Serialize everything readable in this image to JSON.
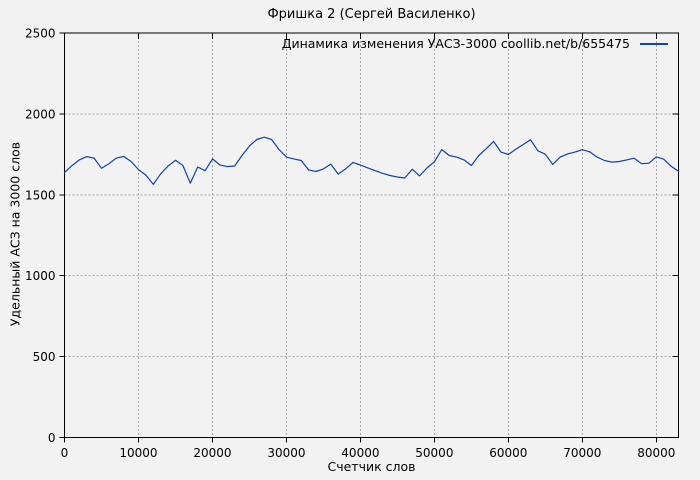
{
  "colors": {
    "background": "#f2f2f2",
    "grid": "#a6a6a6",
    "axis": "#000000",
    "series_line": "#1243a5"
  },
  "chart_data": {
    "type": "line",
    "title": "Фришка 2 (Сергей Василенко)",
    "xlabel": "Счетчик слов",
    "ylabel": "Удельный АСЗ на 3000 слов",
    "xlim": [
      0,
      83000
    ],
    "ylim": [
      0,
      2500
    ],
    "xticks": [
      0,
      10000,
      20000,
      30000,
      40000,
      50000,
      60000,
      70000,
      80000
    ],
    "yticks": [
      0,
      500,
      1000,
      1500,
      2000,
      2500
    ],
    "grid": true,
    "legend_position": "top-right-inside",
    "series": [
      {
        "name": "Динамика изменения УАСЗ-3000 coollib.net/b/655475",
        "color": "#1243a5",
        "x": [
          0,
          1000,
          2000,
          3000,
          4000,
          5000,
          6000,
          7000,
          8000,
          9000,
          10000,
          11000,
          12000,
          13000,
          14000,
          15000,
          16000,
          17000,
          18000,
          19000,
          20000,
          21000,
          22000,
          23000,
          24000,
          25000,
          26000,
          27000,
          28000,
          29000,
          30000,
          31000,
          32000,
          33000,
          34000,
          35000,
          36000,
          37000,
          38000,
          39000,
          40000,
          41000,
          42000,
          43000,
          44000,
          45000,
          46000,
          47000,
          48000,
          49000,
          50000,
          51000,
          52000,
          53000,
          54000,
          55000,
          56000,
          57000,
          58000,
          59000,
          60000,
          61000,
          62000,
          63000,
          64000,
          65000,
          66000,
          67000,
          68000,
          69000,
          70000,
          71000,
          72000,
          73000,
          74000,
          75000,
          76000,
          77000,
          78000,
          79000,
          80000,
          81000,
          82000,
          83000
        ],
        "values": [
          1638,
          1680,
          1716,
          1736,
          1727,
          1664,
          1692,
          1727,
          1737,
          1706,
          1656,
          1622,
          1565,
          1630,
          1678,
          1713,
          1681,
          1572,
          1672,
          1649,
          1722,
          1685,
          1674,
          1678,
          1743,
          1801,
          1842,
          1856,
          1842,
          1780,
          1733,
          1722,
          1712,
          1654,
          1644,
          1660,
          1690,
          1628,
          1660,
          1700,
          1684,
          1666,
          1649,
          1633,
          1619,
          1610,
          1604,
          1658,
          1617,
          1666,
          1704,
          1780,
          1743,
          1733,
          1716,
          1681,
          1743,
          1785,
          1830,
          1764,
          1749,
          1782,
          1811,
          1840,
          1772,
          1751,
          1688,
          1733,
          1753,
          1764,
          1779,
          1766,
          1733,
          1712,
          1702,
          1706,
          1716,
          1726,
          1692,
          1695,
          1735,
          1720,
          1677,
          1645
        ]
      }
    ]
  }
}
